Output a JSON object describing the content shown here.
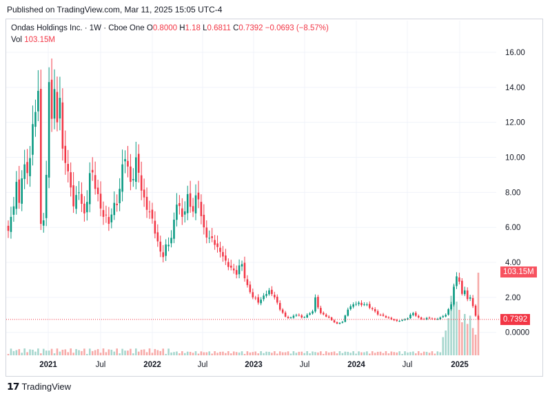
{
  "header": {
    "published": "Published on TradingView.com, Mar 11, 2025 15:05 UTC-4"
  },
  "legend": {
    "symbol": "Ondas Holdings Inc. · 1W · Cboe One",
    "o_label": "O",
    "o_value": "0.8000",
    "h_label": "H",
    "h_value": "1.18",
    "l_label": "L",
    "l_value": "0.6811",
    "c_label": "C",
    "c_value": "0.7392",
    "change": "−0.0693 (−8.57%)",
    "vol_label": "Vol",
    "vol_value": "103.15M"
  },
  "price_tag": "0.7392",
  "volume_tag": "103.15M",
  "footer": {
    "brand": "TradingView"
  },
  "colors": {
    "up": "#089981",
    "down": "#f23645",
    "upVol": "#a5d6cd",
    "downVol": "#f7a9a7",
    "grid": "#f0f3fa"
  },
  "chart_data": {
    "type": "candlestick",
    "title": "Ondas Holdings Inc. · 1W · Cboe One",
    "y_ticks": [
      "16.00",
      "14.00",
      "12.00",
      "10.00",
      "8.00",
      "6.00",
      "4.00",
      "2.00",
      "0.0000"
    ],
    "ylim": [
      -1.3,
      16.9
    ],
    "x_ticks": [
      "2021",
      "Jul",
      "2022",
      "Jul",
      "2023",
      "Jul",
      "2024",
      "Jul",
      "2025"
    ],
    "last_close": 0.7392,
    "anchors": [
      {
        "t": 0,
        "p": 5.8
      },
      {
        "t": 1,
        "p": 6.6
      },
      {
        "t": 2,
        "p": 7.2
      },
      {
        "t": 3,
        "p": 8.6
      },
      {
        "t": 4,
        "p": 7.4
      },
      {
        "t": 5,
        "p": 8.8
      },
      {
        "t": 6,
        "p": 9.6
      },
      {
        "t": 7,
        "p": 9.1
      },
      {
        "t": 9,
        "p": 11.9
      },
      {
        "t": 11,
        "p": 13.8
      },
      {
        "t": 12,
        "p": 6.2
      },
      {
        "t": 13,
        "p": 6.4
      },
      {
        "t": 14,
        "p": 9.0
      },
      {
        "t": 15,
        "p": 14.3
      },
      {
        "t": 16,
        "p": 12.2
      },
      {
        "t": 17,
        "p": 13.9
      },
      {
        "t": 18,
        "p": 12.0
      },
      {
        "t": 19,
        "p": 13.4
      },
      {
        "t": 20,
        "p": 10.5
      },
      {
        "t": 22,
        "p": 9.2
      },
      {
        "t": 24,
        "p": 7.2
      },
      {
        "t": 26,
        "p": 8.0
      },
      {
        "t": 28,
        "p": 6.8
      },
      {
        "t": 30,
        "p": 9.1
      },
      {
        "t": 32,
        "p": 8.2
      },
      {
        "t": 35,
        "p": 6.6
      },
      {
        "t": 37,
        "p": 6.2
      },
      {
        "t": 39,
        "p": 7.4
      },
      {
        "t": 41,
        "p": 8.2
      },
      {
        "t": 43,
        "p": 9.9
      },
      {
        "t": 45,
        "p": 8.6
      },
      {
        "t": 47,
        "p": 10.0
      },
      {
        "t": 49,
        "p": 8.1
      },
      {
        "t": 51,
        "p": 7.0
      },
      {
        "t": 53,
        "p": 6.5
      },
      {
        "t": 55,
        "p": 5.2
      },
      {
        "t": 57,
        "p": 4.3
      },
      {
        "t": 60,
        "p": 5.4
      },
      {
        "t": 62,
        "p": 7.3
      },
      {
        "t": 64,
        "p": 6.6
      },
      {
        "t": 66,
        "p": 7.9
      },
      {
        "t": 68,
        "p": 6.9
      },
      {
        "t": 70,
        "p": 7.6
      },
      {
        "t": 72,
        "p": 6.0
      },
      {
        "t": 74,
        "p": 5.4
      },
      {
        "t": 76,
        "p": 5.0
      },
      {
        "t": 78,
        "p": 4.6
      },
      {
        "t": 80,
        "p": 4.1
      },
      {
        "t": 82,
        "p": 3.7
      },
      {
        "t": 84,
        "p": 3.3
      },
      {
        "t": 86,
        "p": 3.9
      },
      {
        "t": 88,
        "p": 2.7
      },
      {
        "t": 90,
        "p": 2.0
      },
      {
        "t": 92,
        "p": 1.7
      },
      {
        "t": 94,
        "p": 2.1
      },
      {
        "t": 96,
        "p": 2.4
      },
      {
        "t": 98,
        "p": 2.0
      },
      {
        "t": 100,
        "p": 1.3
      },
      {
        "t": 102,
        "p": 0.9
      },
      {
        "t": 104,
        "p": 0.85
      },
      {
        "t": 106,
        "p": 1.0
      },
      {
        "t": 108,
        "p": 0.85
      },
      {
        "t": 110,
        "p": 1.0
      },
      {
        "t": 112,
        "p": 1.2
      },
      {
        "t": 113,
        "p": 2.0
      },
      {
        "t": 115,
        "p": 1.1
      },
      {
        "t": 117,
        "p": 0.9
      },
      {
        "t": 119,
        "p": 0.7
      },
      {
        "t": 121,
        "p": 0.5
      },
      {
        "t": 123,
        "p": 0.6
      },
      {
        "t": 125,
        "p": 1.3
      },
      {
        "t": 127,
        "p": 1.6
      },
      {
        "t": 129,
        "p": 1.7
      },
      {
        "t": 131,
        "p": 1.6
      },
      {
        "t": 133,
        "p": 1.4
      },
      {
        "t": 135,
        "p": 1.2
      },
      {
        "t": 137,
        "p": 1.0
      },
      {
        "t": 139,
        "p": 0.85
      },
      {
        "t": 141,
        "p": 0.75
      },
      {
        "t": 143,
        "p": 0.65
      },
      {
        "t": 145,
        "p": 0.7
      },
      {
        "t": 147,
        "p": 0.8
      },
      {
        "t": 149,
        "p": 1.1
      },
      {
        "t": 151,
        "p": 0.85
      },
      {
        "t": 153,
        "p": 0.75
      },
      {
        "t": 155,
        "p": 0.8
      },
      {
        "t": 157,
        "p": 0.75
      },
      {
        "t": 159,
        "p": 0.85
      },
      {
        "t": 161,
        "p": 1.0
      },
      {
        "t": 163,
        "p": 1.6
      },
      {
        "t": 164,
        "p": 2.6
      },
      {
        "t": 165,
        "p": 3.2
      },
      {
        "t": 166,
        "p": 2.9
      },
      {
        "t": 167,
        "p": 2.2
      },
      {
        "t": 168,
        "p": 2.4
      },
      {
        "t": 169,
        "p": 1.9
      },
      {
        "t": 170,
        "p": 2.0
      },
      {
        "t": 171,
        "p": 1.5
      },
      {
        "t": 172,
        "p": 0.95
      },
      {
        "t": 173,
        "p": 0.7392
      }
    ],
    "volume_spikes": [
      {
        "t": 160,
        "v": 0.22
      },
      {
        "t": 161,
        "v": 0.3
      },
      {
        "t": 162,
        "v": 0.45
      },
      {
        "t": 163,
        "v": 0.72
      },
      {
        "t": 164,
        "v": 0.85
      },
      {
        "t": 165,
        "v": 0.65
      },
      {
        "t": 166,
        "v": 0.55
      },
      {
        "t": 167,
        "v": 0.4
      },
      {
        "t": 168,
        "v": 0.5
      },
      {
        "t": 169,
        "v": 0.38
      },
      {
        "t": 170,
        "v": 0.48
      },
      {
        "t": 171,
        "v": 0.33
      },
      {
        "t": 172,
        "v": 0.25
      },
      {
        "t": 173,
        "v": 1.0
      }
    ]
  }
}
